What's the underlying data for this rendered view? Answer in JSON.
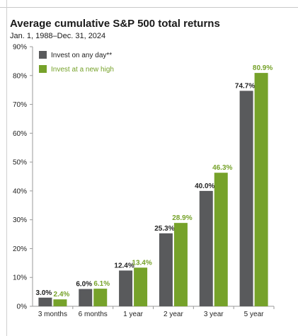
{
  "title": "Average cumulative S&P 500 total returns",
  "subtitle": "Jan. 1, 1988–Dec. 31, 2024",
  "colors": {
    "series_a": "#595a5c",
    "series_b": "#76a22a",
    "label_b": "#76a22a",
    "label_a": "#222222"
  },
  "chart_data": {
    "type": "bar",
    "title": "Average cumulative S&P 500 total returns",
    "subtitle": "Jan. 1, 1988–Dec. 31, 2024",
    "categories": [
      "3 months",
      "6 months",
      "1 year",
      "2 year",
      "3 year",
      "5 year"
    ],
    "series": [
      {
        "name": "Invest on any day**",
        "values": [
          3.0,
          6.0,
          12.4,
          25.3,
          40.0,
          74.7
        ],
        "labels": [
          "3.0%",
          "6.0%",
          "12.4%",
          "25.3%",
          "40.0%",
          "74.7%"
        ]
      },
      {
        "name": "Invest at a new high",
        "values": [
          2.4,
          6.1,
          13.4,
          28.9,
          46.3,
          80.9
        ],
        "labels": [
          "2.4%",
          "6.1%",
          "13.4%",
          "28.9%",
          "46.3%",
          "80.9%"
        ]
      }
    ],
    "yticks": [
      "0%",
      "10%",
      "20%",
      "30%",
      "40%",
      "50%",
      "60%",
      "70%",
      "80%",
      "90%"
    ],
    "ylim": [
      0,
      90
    ],
    "grid": false,
    "legend_position": "top-left"
  }
}
